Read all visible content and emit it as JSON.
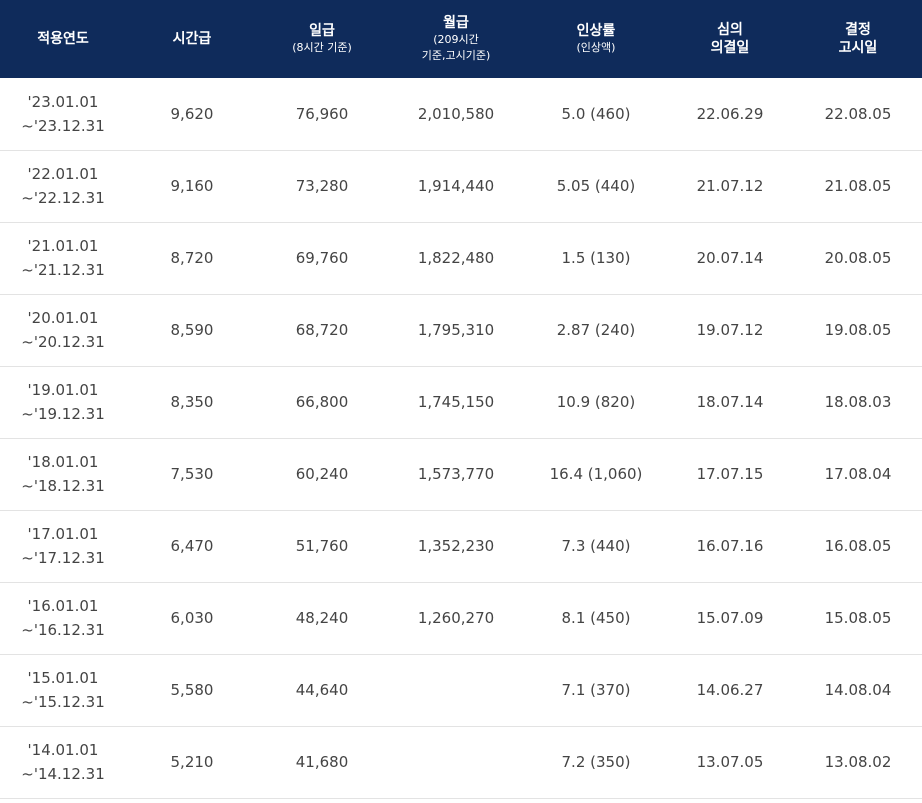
{
  "header": {
    "year": "적용연도",
    "hourly": "시간급",
    "daily": "일급",
    "daily_sub": "(8시간 기준)",
    "monthly": "월급",
    "monthly_sub1": "(209시간",
    "monthly_sub2": "기준,고시기준)",
    "rate": "인상률",
    "rate_sub": "(인상액)",
    "decision_1": "심의",
    "decision_2": "의결일",
    "notice_1": "결정",
    "notice_2": "고시일"
  },
  "rows": [
    {
      "start": "'23.01.01",
      "end": "~'23.12.31",
      "hourly": "9,620",
      "daily": "76,960",
      "monthly": "2,010,580",
      "rate": "5.0 (460)",
      "decision": "22.06.29",
      "notice": "22.08.05"
    },
    {
      "start": "'22.01.01",
      "end": "~'22.12.31",
      "hourly": "9,160",
      "daily": "73,280",
      "monthly": "1,914,440",
      "rate": "5.05 (440)",
      "decision": "21.07.12",
      "notice": "21.08.05"
    },
    {
      "start": "'21.01.01",
      "end": "~'21.12.31",
      "hourly": "8,720",
      "daily": "69,760",
      "monthly": "1,822,480",
      "rate": "1.5 (130)",
      "decision": "20.07.14",
      "notice": "20.08.05"
    },
    {
      "start": "'20.01.01",
      "end": "~'20.12.31",
      "hourly": "8,590",
      "daily": "68,720",
      "monthly": "1,795,310",
      "rate": "2.87 (240)",
      "decision": "19.07.12",
      "notice": "19.08.05"
    },
    {
      "start": "'19.01.01",
      "end": "~'19.12.31",
      "hourly": "8,350",
      "daily": "66,800",
      "monthly": "1,745,150",
      "rate": "10.9 (820)",
      "decision": "18.07.14",
      "notice": "18.08.03"
    },
    {
      "start": "'18.01.01",
      "end": "~'18.12.31",
      "hourly": "7,530",
      "daily": "60,240",
      "monthly": "1,573,770",
      "rate": "16.4 (1,060)",
      "decision": "17.07.15",
      "notice": "17.08.04"
    },
    {
      "start": "'17.01.01",
      "end": "~'17.12.31",
      "hourly": "6,470",
      "daily": "51,760",
      "monthly": "1,352,230",
      "rate": "7.3 (440)",
      "decision": "16.07.16",
      "notice": "16.08.05"
    },
    {
      "start": "'16.01.01",
      "end": "~'16.12.31",
      "hourly": "6,030",
      "daily": "48,240",
      "monthly": "1,260,270",
      "rate": "8.1 (450)",
      "decision": "15.07.09",
      "notice": "15.08.05"
    },
    {
      "start": "'15.01.01",
      "end": "~'15.12.31",
      "hourly": "5,580",
      "daily": "44,640",
      "monthly": "",
      "rate": "7.1 (370)",
      "decision": "14.06.27",
      "notice": "14.08.04"
    },
    {
      "start": "'14.01.01",
      "end": "~'14.12.31",
      "hourly": "5,210",
      "daily": "41,680",
      "monthly": "",
      "rate": "7.2 (350)",
      "decision": "13.07.05",
      "notice": "13.08.02"
    }
  ],
  "colors": {
    "header_bg": "#0f2b5b",
    "header_text": "#ffffff",
    "row_border": "#e3e3e3"
  }
}
